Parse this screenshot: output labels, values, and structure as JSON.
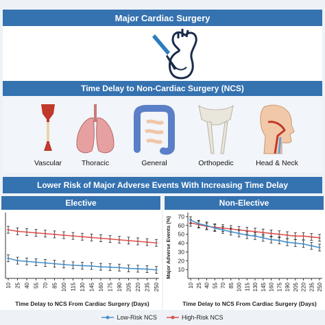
{
  "header": {
    "title": "Major Cardiac Surgery"
  },
  "timing": {
    "title": "Time Delay to Non-Cardiac Surgery (NCS)",
    "categories": [
      {
        "label": "Vascular",
        "icon": "blood-vessel-icon"
      },
      {
        "label": "Thoracic",
        "icon": "lungs-icon"
      },
      {
        "label": "General",
        "icon": "intestines-icon"
      },
      {
        "label": "Orthopedic",
        "icon": "pelvis-bones-icon"
      },
      {
        "label": "Head & Neck",
        "icon": "head-neck-icon"
      }
    ]
  },
  "risk": {
    "title": "Lower Risk of Major Adverse Events With Increasing Time Delay"
  },
  "colors": {
    "banner": "#3572b0",
    "low_risk": "#4a90c8",
    "high_risk": "#d9534f"
  },
  "chart_data": [
    {
      "type": "line",
      "title": "Elective",
      "xlabel": "Time Delay to NCS From Cardiac Surgery (Days)",
      "ylabel": "",
      "x": [
        10,
        25,
        40,
        55,
        70,
        85,
        100,
        115,
        130,
        145,
        160,
        175,
        190,
        205,
        220,
        235,
        250
      ],
      "ylim": [
        0,
        80
      ],
      "series": [
        {
          "name": "High-Risk NCS",
          "values": [
            63,
            61,
            60,
            59,
            58,
            57,
            56,
            55,
            54,
            53,
            52,
            51,
            50,
            49,
            48,
            47,
            46
          ]
        },
        {
          "name": "Low-Risk NCS",
          "values": [
            26,
            23,
            22,
            21,
            20,
            19,
            18,
            17,
            16.5,
            16,
            15,
            14.5,
            14,
            13,
            12.5,
            12,
            11
          ]
        }
      ]
    },
    {
      "type": "line",
      "title": "Non-Elective",
      "xlabel": "Time Delay to NCS From Cardiac Surgery (Days)",
      "ylabel": "Major Adverse Events (%)",
      "x": [
        10,
        25,
        40,
        55,
        70,
        85,
        100,
        115,
        130,
        145,
        160,
        175,
        190,
        205,
        220,
        235,
        250
      ],
      "ylim": [
        0,
        70
      ],
      "yticks": [
        10,
        20,
        30,
        40,
        50,
        60,
        70
      ],
      "series": [
        {
          "name": "High-Risk NCS",
          "values": [
            63,
            61,
            59,
            58,
            57,
            56,
            55,
            54,
            53,
            52,
            51,
            50,
            49,
            48,
            48,
            47,
            46
          ]
        },
        {
          "name": "Low-Risk NCS",
          "values": [
            66,
            62,
            60,
            57,
            55,
            53,
            51,
            49,
            48,
            46,
            44,
            43,
            41,
            40,
            39,
            37,
            35
          ]
        }
      ]
    }
  ],
  "legend": {
    "low": "Low-Risk NCS",
    "high": "High-Risk NCS"
  }
}
